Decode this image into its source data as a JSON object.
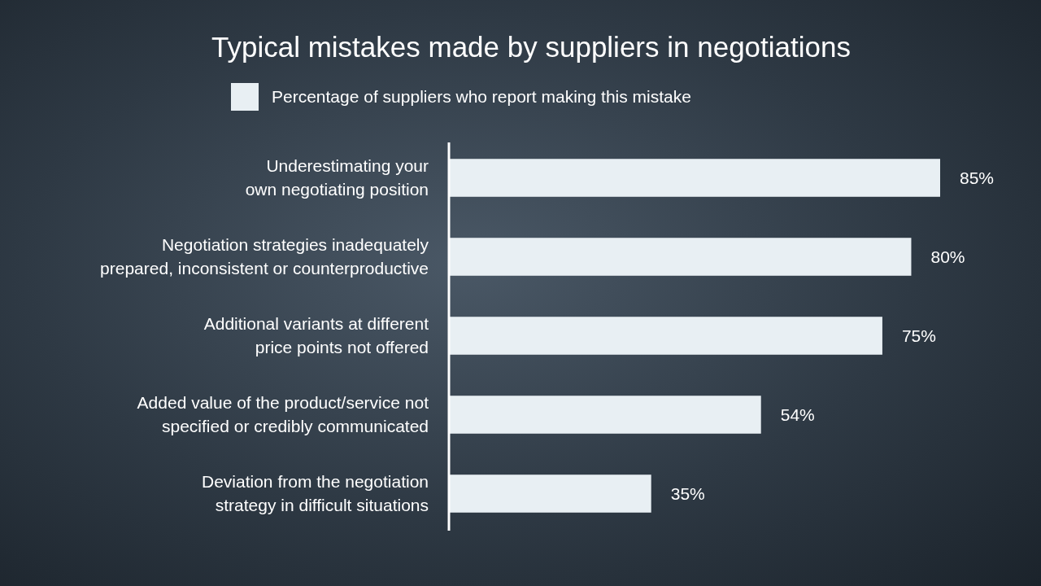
{
  "chart_data": {
    "type": "bar",
    "orientation": "horizontal",
    "title": "Typical mistakes made by suppliers in negotiations",
    "categories": [
      "Underestimating your own negotiating position",
      "Negotiation strategies inadequately prepared, inconsistent or counterproductive",
      "Additional variants at different price points not offered",
      "Added value of the product/service not specified or credibly communicated",
      "Deviation from the negotiation strategy in difficult situations"
    ],
    "series": [
      {
        "name": "Percentage of suppliers who report making this mistake",
        "color": "#e8eff3",
        "values": [
          85,
          80,
          75,
          54,
          35
        ],
        "value_labels": [
          "85%",
          "80%",
          "75%",
          "54%",
          "35%"
        ]
      }
    ],
    "legend": "top"
  }
}
